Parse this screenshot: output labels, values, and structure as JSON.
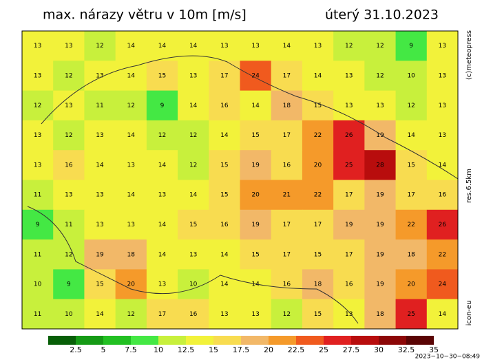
{
  "header": {
    "title": "max. nárazy větru v 10m [m/s]",
    "date": "úterý 31.10.2023"
  },
  "side_labels": {
    "copyright": "(c)meteopress",
    "resolution": "res.6.5km",
    "model": "icon-eu"
  },
  "grid": {
    "rows": [
      [
        13,
        13,
        12,
        14,
        14,
        14,
        13,
        13,
        14,
        13,
        12,
        12,
        9,
        13
      ],
      [
        13,
        12,
        13,
        14,
        15,
        13,
        17,
        24,
        17,
        14,
        13,
        12,
        10,
        13
      ],
      [
        12,
        13,
        11,
        12,
        9,
        14,
        16,
        14,
        18,
        15,
        13,
        13,
        12,
        13
      ],
      [
        13,
        12,
        13,
        14,
        12,
        12,
        14,
        15,
        17,
        22,
        26,
        19,
        14,
        13
      ],
      [
        13,
        16,
        14,
        13,
        14,
        12,
        15,
        19,
        16,
        20,
        25,
        28,
        15,
        14
      ],
      [
        11,
        13,
        13,
        14,
        13,
        14,
        15,
        20,
        21,
        22,
        17,
        19,
        17,
        16
      ],
      [
        9,
        11,
        13,
        13,
        14,
        15,
        16,
        19,
        17,
        17,
        19,
        19,
        22,
        26
      ],
      [
        11,
        12,
        19,
        18,
        14,
        13,
        14,
        15,
        17,
        15,
        17,
        19,
        18,
        22
      ],
      [
        10,
        9,
        15,
        20,
        13,
        10,
        14,
        14,
        16,
        18,
        16,
        19,
        20,
        24
      ],
      [
        11,
        10,
        14,
        12,
        17,
        16,
        13,
        13,
        12,
        15,
        13,
        18,
        25,
        14
      ]
    ]
  },
  "scale": {
    "colors": [
      "#075e07",
      "#159a15",
      "#22c022",
      "#44e844",
      "#c8f03c",
      "#f2f23a",
      "#f8dc50",
      "#f2b868",
      "#f59a2a",
      "#f05a1e",
      "#e02020",
      "#b80d0d",
      "#8c0707",
      "#5a0404"
    ],
    "ticks": [
      2.5,
      5,
      7.5,
      10,
      12.5,
      15,
      17.5,
      20,
      22.5,
      25,
      27.5,
      30,
      32.5,
      35
    ]
  },
  "footer": {
    "timestamp": "2023−10−30−08:49"
  }
}
